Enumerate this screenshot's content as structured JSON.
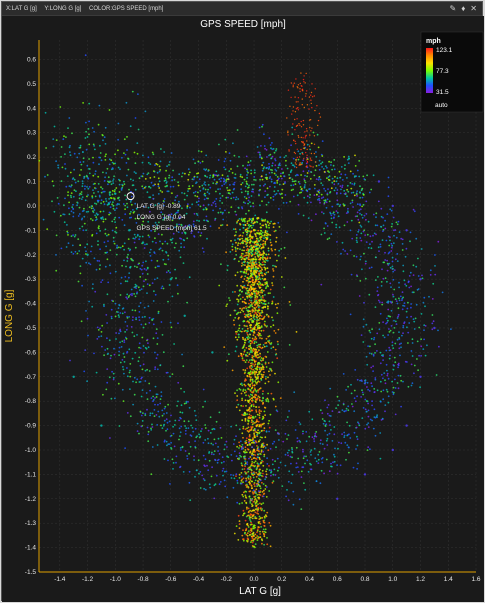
{
  "window": {
    "spec_x": "X:LAT G [g]",
    "spec_y": "Y:LONG G [g]",
    "spec_color": "COLOR:GPS SPEED [mph]",
    "icons": [
      "pin-icon",
      "tag-icon",
      "close-icon"
    ]
  },
  "chart_data": {
    "type": "scatter",
    "title": "GPS SPEED [mph]",
    "xlabel": "LAT G [g]",
    "ylabel": "LONG G [g]",
    "xlim": [
      -1.55,
      1.6
    ],
    "ylim": [
      -1.5,
      0.68
    ],
    "x_ticks": [
      "-1.4",
      "-1.2",
      "-1.0",
      "-0.8",
      "-0.6",
      "-0.4",
      "-0.2",
      "0.0",
      "0.2",
      "0.4",
      "0.6",
      "0.8",
      "1.0",
      "1.2",
      "1.4",
      "1.6"
    ],
    "y_ticks": [
      "0.6",
      "0.5",
      "0.4",
      "0.3",
      "0.2",
      "0.1",
      "0.0",
      "-0.1",
      "-0.2",
      "-0.3",
      "-0.4",
      "-0.5",
      "-0.6",
      "-0.7",
      "-0.8",
      "-0.9",
      "-1.0",
      "-1.1",
      "-1.2",
      "-1.3",
      "-1.4",
      "-1.5"
    ],
    "grid": true,
    "color_scale": {
      "title": "mph",
      "max": "123.1",
      "mid": "77.3",
      "min": "31.5",
      "mode": "auto",
      "colors": [
        "#ff1a1a",
        "#ff8c00",
        "#ffe000",
        "#7cff00",
        "#00c8a0",
        "#1e50ff",
        "#8a1ee0"
      ]
    },
    "tooltip": {
      "x": -0.89,
      "y": 0.04,
      "lines": [
        "LAT G [g] -0.89",
        "LONG G [g] 0.04",
        "GPS SPEED [mph] 61.5"
      ]
    },
    "series": [
      {
        "x": [
          0.0,
          0.03,
          -0.03,
          0.05,
          -0.05,
          0.08,
          0.0,
          0.02,
          -0.02,
          0.04,
          0.01,
          0.06,
          -0.04,
          0.02,
          0.0,
          0.03
        ],
        "y": [
          -0.1,
          -0.05,
          -0.15,
          -0.2,
          -0.25,
          -0.3,
          -0.35,
          -0.4,
          -0.45,
          -0.5,
          -0.6,
          -0.7,
          -0.8,
          -0.9,
          -1.0,
          -1.1
        ],
        "speed": 95
      },
      {
        "x": [
          -1.0,
          -1.1,
          -0.9,
          -1.2,
          -0.8,
          -0.6,
          -0.5,
          -0.3,
          -1.3,
          -1.1
        ],
        "y": [
          0.05,
          -0.05,
          -0.1,
          -0.2,
          -0.15,
          -0.3,
          -0.45,
          -0.6,
          -0.7,
          -0.9
        ],
        "speed": 60
      },
      {
        "x": [
          0.9,
          1.0,
          1.1,
          1.2,
          1.3,
          1.2,
          1.1,
          1.0,
          0.8,
          0.6
        ],
        "y": [
          0.1,
          0.0,
          -0.1,
          -0.3,
          -0.5,
          -0.7,
          -0.9,
          -1.0,
          -1.1,
          -1.2
        ],
        "speed": 40
      }
    ]
  }
}
